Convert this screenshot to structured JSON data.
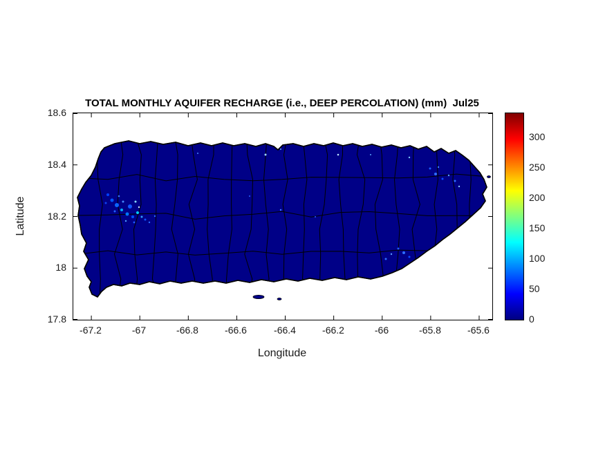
{
  "figure": {
    "title": "TOTAL MONTHLY AQUIFER RECHARGE (i.e., DEEP PERCOLATION) (mm)  Jul25",
    "xlabel": "Longitude",
    "ylabel": "Latitude"
  },
  "axes": {
    "x_ticks": [
      "-67.2",
      "-67",
      "-66.8",
      "-66.6",
      "-66.4",
      "-66.2",
      "-66",
      "-65.8",
      "-65.6"
    ],
    "y_ticks": [
      "18.6",
      "18.4",
      "18.2",
      "18",
      "17.8"
    ]
  },
  "colorbar": {
    "tick_labels": [
      "300",
      "250",
      "200",
      "150",
      "100",
      "50",
      "0"
    ]
  },
  "colors": {
    "island_fill": "#000087",
    "boundary": "#000000",
    "jet_low": "#000080",
    "jet_high": "#800000",
    "text": "#1a1a1a",
    "background": "#ffffff"
  },
  "chart_data": {
    "type": "heatmap",
    "title": "TOTAL MONTHLY AQUIFER RECHARGE (i.e., DEEP PERCOLATION) (mm)  Jul25",
    "month": "Jul25",
    "units": "mm",
    "xlabel": "Longitude",
    "ylabel": "Latitude",
    "xlim": [
      -67.27,
      -65.55
    ],
    "ylim": [
      17.8,
      18.6
    ],
    "x_ticks": [
      -67.2,
      -67,
      -66.8,
      -66.6,
      -66.4,
      -66.2,
      -66,
      -65.8,
      -65.6
    ],
    "y_ticks": [
      18.6,
      18.4,
      18.2,
      18,
      17.8
    ],
    "colorbar": {
      "colormap": "jet",
      "range": [
        0,
        340
      ],
      "ticks": [
        0,
        50,
        100,
        150,
        200,
        250,
        300
      ]
    },
    "region": "Puerto Rico (municipal boundaries drawn in black)",
    "dominant_value": 0,
    "dominant_color": "dark blue (near-zero recharge over almost the entire island)",
    "hotspots": [
      {
        "lon": -67.08,
        "lat": 18.27,
        "value_mm": 100,
        "note": "cluster of elevated recharge specks, western PR (Anasco/Mayaguez valley)"
      },
      {
        "lon": -66.98,
        "lat": 18.22,
        "value_mm": 60,
        "note": "light-blue specks, west-central PR"
      },
      {
        "lon": -65.78,
        "lat": 18.32,
        "value_mm": 50,
        "note": "scattered specks, northeastern PR"
      },
      {
        "lon": -65.95,
        "lat": 18.04,
        "value_mm": 50,
        "note": "scattered specks, southeastern PR"
      }
    ],
    "grid": false,
    "legend_position": "right-colorbar"
  }
}
